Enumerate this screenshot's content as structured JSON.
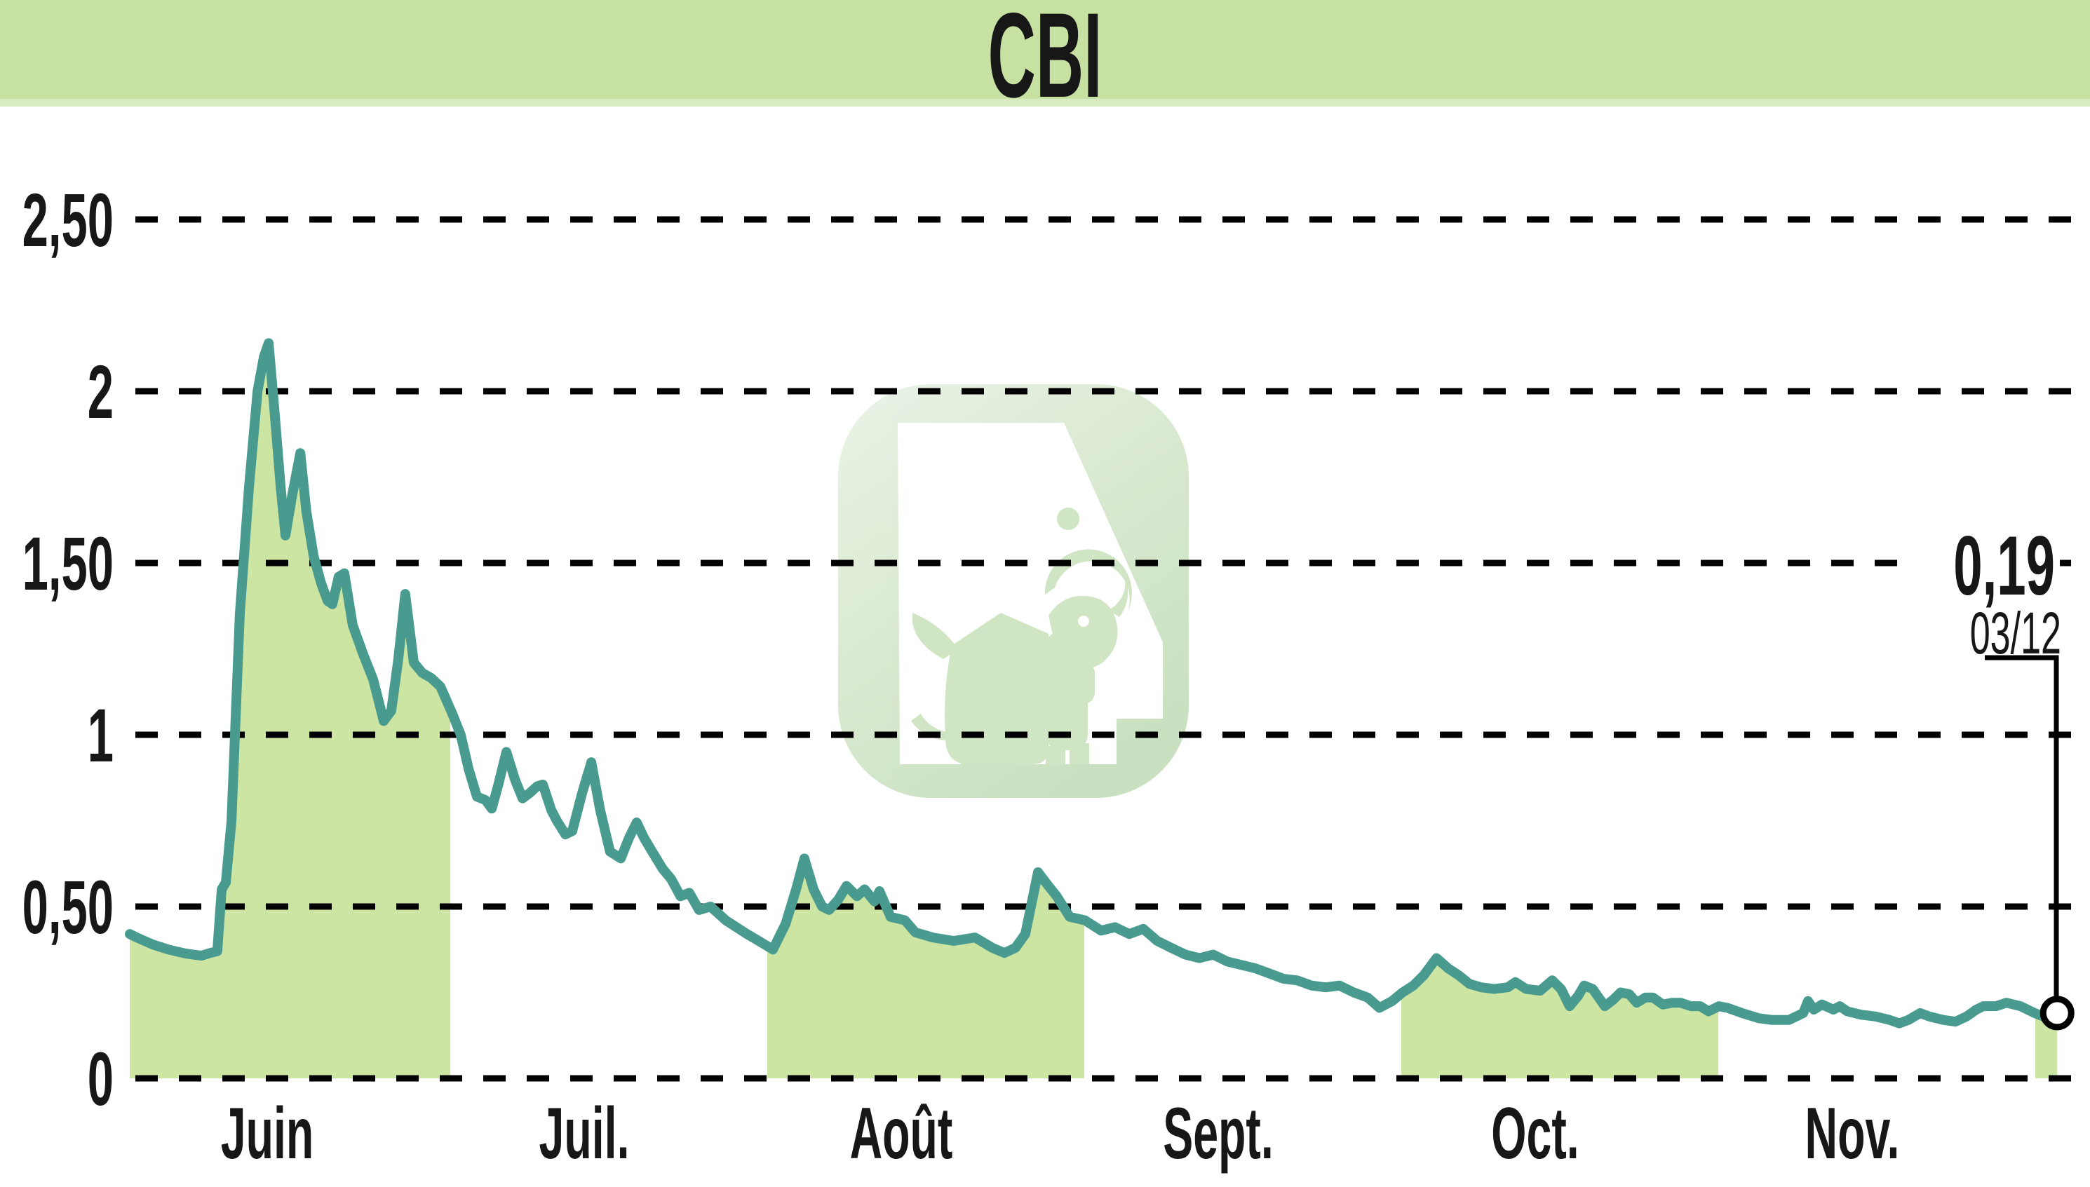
{
  "title": "CBI",
  "colors": {
    "header_bg": "#c6e1a2",
    "header_edge": "#d9ebc1",
    "line": "#4a9b8f",
    "area_fill": "#cde5a2",
    "grid": "#000000",
    "text": "#171717",
    "background": "#ffffff",
    "watermark_light": "#e9f3e5",
    "watermark_dark": "#c8e0bf",
    "watermark_shape": "#cfe4c1"
  },
  "y_axis": {
    "ticks": [
      "2,50",
      "2",
      "1,50",
      "1",
      "0,50",
      "0"
    ],
    "values": [
      2.5,
      2,
      1.5,
      1,
      0.5,
      0
    ]
  },
  "x_axis": {
    "months": [
      "Juin",
      "Juil.",
      "Août",
      "Sept.",
      "Oct.",
      "Nov."
    ]
  },
  "last_quote": {
    "price": "0,19",
    "date": "03/12",
    "value": 0.19
  },
  "watermark": "abc-bourse-logo",
  "chart_data": {
    "type": "area",
    "title": "CBI",
    "ylabel": "",
    "xlabel": "",
    "ylim": [
      0,
      2.5
    ],
    "grid": "dashed-horizontal",
    "legend": "none",
    "x_unit": "months since 01/06 (0 = June 1st)",
    "shaded_month_indices": [
      0,
      2,
      4,
      6
    ],
    "series_name": "CBI share price (EUR)",
    "points": [
      [
        -0.011,
        0.42
      ],
      [
        0.011,
        0.41
      ],
      [
        0.06,
        0.39
      ],
      [
        0.111,
        0.375
      ],
      [
        0.166,
        0.363
      ],
      [
        0.215,
        0.357
      ],
      [
        0.243,
        0.365
      ],
      [
        0.265,
        0.37
      ],
      [
        0.279,
        0.55
      ],
      [
        0.292,
        0.57
      ],
      [
        0.31,
        0.75
      ],
      [
        0.336,
        1.35
      ],
      [
        0.365,
        1.72
      ],
      [
        0.392,
        2.0
      ],
      [
        0.412,
        2.1
      ],
      [
        0.427,
        2.14
      ],
      [
        0.445,
        1.95
      ],
      [
        0.465,
        1.72
      ],
      [
        0.48,
        1.58
      ],
      [
        0.502,
        1.7
      ],
      [
        0.527,
        1.82
      ],
      [
        0.546,
        1.65
      ],
      [
        0.569,
        1.52
      ],
      [
        0.593,
        1.44
      ],
      [
        0.613,
        1.39
      ],
      [
        0.628,
        1.38
      ],
      [
        0.648,
        1.46
      ],
      [
        0.666,
        1.47
      ],
      [
        0.692,
        1.32
      ],
      [
        0.723,
        1.24
      ],
      [
        0.757,
        1.16
      ],
      [
        0.79,
        1.04
      ],
      [
        0.814,
        1.07
      ],
      [
        0.836,
        1.22
      ],
      [
        0.858,
        1.41
      ],
      [
        0.885,
        1.21
      ],
      [
        0.912,
        1.18
      ],
      [
        0.94,
        1.165
      ],
      [
        0.969,
        1.14
      ],
      [
        1.007,
        1.06
      ],
      [
        1.033,
        1.0
      ],
      [
        1.058,
        0.9
      ],
      [
        1.084,
        0.82
      ],
      [
        1.111,
        0.81
      ],
      [
        1.131,
        0.785
      ],
      [
        1.153,
        0.86
      ],
      [
        1.177,
        0.95
      ],
      [
        1.204,
        0.87
      ],
      [
        1.228,
        0.815
      ],
      [
        1.25,
        0.83
      ],
      [
        1.274,
        0.85
      ],
      [
        1.292,
        0.855
      ],
      [
        1.319,
        0.78
      ],
      [
        1.336,
        0.75
      ],
      [
        1.363,
        0.71
      ],
      [
        1.385,
        0.72
      ],
      [
        1.416,
        0.83
      ],
      [
        1.445,
        0.92
      ],
      [
        1.473,
        0.78
      ],
      [
        1.504,
        0.66
      ],
      [
        1.538,
        0.64
      ],
      [
        1.564,
        0.7
      ],
      [
        1.588,
        0.745
      ],
      [
        1.611,
        0.7
      ],
      [
        1.637,
        0.66
      ],
      [
        1.67,
        0.61
      ],
      [
        1.697,
        0.58
      ],
      [
        1.726,
        0.53
      ],
      [
        1.754,
        0.54
      ],
      [
        1.785,
        0.49
      ],
      [
        1.821,
        0.5
      ],
      [
        1.869,
        0.46
      ],
      [
        1.936,
        0.42
      ],
      [
        1.973,
        0.4
      ],
      [
        2.018,
        0.375
      ],
      [
        2.058,
        0.45
      ],
      [
        2.091,
        0.55
      ],
      [
        2.117,
        0.64
      ],
      [
        2.146,
        0.55
      ],
      [
        2.173,
        0.5
      ],
      [
        2.195,
        0.49
      ],
      [
        2.224,
        0.52
      ],
      [
        2.25,
        0.56
      ],
      [
        2.283,
        0.53
      ],
      [
        2.307,
        0.55
      ],
      [
        2.338,
        0.515
      ],
      [
        2.354,
        0.545
      ],
      [
        2.389,
        0.47
      ],
      [
        2.434,
        0.46
      ],
      [
        2.467,
        0.425
      ],
      [
        2.522,
        0.41
      ],
      [
        2.588,
        0.4
      ],
      [
        2.655,
        0.41
      ],
      [
        2.71,
        0.38
      ],
      [
        2.748,
        0.365
      ],
      [
        2.783,
        0.38
      ],
      [
        2.814,
        0.42
      ],
      [
        2.854,
        0.6
      ],
      [
        2.887,
        0.56
      ],
      [
        2.913,
        0.53
      ],
      [
        2.954,
        0.47
      ],
      [
        3.002,
        0.46
      ],
      [
        3.053,
        0.43
      ],
      [
        3.097,
        0.44
      ],
      [
        3.142,
        0.42
      ],
      [
        3.186,
        0.435
      ],
      [
        3.23,
        0.4
      ],
      [
        3.274,
        0.38
      ],
      [
        3.319,
        0.36
      ],
      [
        3.363,
        0.35
      ],
      [
        3.407,
        0.36
      ],
      [
        3.451,
        0.34
      ],
      [
        3.496,
        0.33
      ],
      [
        3.54,
        0.32
      ],
      [
        3.584,
        0.305
      ],
      [
        3.628,
        0.29
      ],
      [
        3.672,
        0.285
      ],
      [
        3.717,
        0.27
      ],
      [
        3.761,
        0.265
      ],
      [
        3.805,
        0.27
      ],
      [
        3.85,
        0.25
      ],
      [
        3.894,
        0.235
      ],
      [
        3.931,
        0.205
      ],
      [
        3.971,
        0.225
      ],
      [
        4.004,
        0.25
      ],
      [
        4.038,
        0.27
      ],
      [
        4.071,
        0.3
      ],
      [
        4.111,
        0.35
      ],
      [
        4.148,
        0.32
      ],
      [
        4.181,
        0.3
      ],
      [
        4.215,
        0.275
      ],
      [
        4.252,
        0.265
      ],
      [
        4.292,
        0.26
      ],
      [
        4.336,
        0.265
      ],
      [
        4.36,
        0.28
      ],
      [
        4.394,
        0.26
      ],
      [
        4.438,
        0.255
      ],
      [
        4.476,
        0.285
      ],
      [
        4.504,
        0.26
      ],
      [
        4.531,
        0.21
      ],
      [
        4.558,
        0.24
      ],
      [
        4.577,
        0.27
      ],
      [
        4.604,
        0.26
      ],
      [
        4.642,
        0.21
      ],
      [
        4.67,
        0.23
      ],
      [
        4.692,
        0.25
      ],
      [
        4.719,
        0.245
      ],
      [
        4.743,
        0.22
      ],
      [
        4.77,
        0.235
      ],
      [
        4.794,
        0.235
      ],
      [
        4.825,
        0.215
      ],
      [
        4.854,
        0.22
      ],
      [
        4.881,
        0.22
      ],
      [
        4.914,
        0.21
      ],
      [
        4.943,
        0.21
      ],
      [
        4.969,
        0.195
      ],
      [
        5.002,
        0.21
      ],
      [
        5.029,
        0.205
      ],
      [
        5.075,
        0.19
      ],
      [
        5.128,
        0.175
      ],
      [
        5.168,
        0.17
      ],
      [
        5.223,
        0.17
      ],
      [
        5.268,
        0.19
      ],
      [
        5.283,
        0.225
      ],
      [
        5.301,
        0.2
      ],
      [
        5.327,
        0.215
      ],
      [
        5.363,
        0.2
      ],
      [
        5.383,
        0.21
      ],
      [
        5.407,
        0.195
      ],
      [
        5.451,
        0.185
      ],
      [
        5.496,
        0.18
      ],
      [
        5.54,
        0.17
      ],
      [
        5.571,
        0.16
      ],
      [
        5.6,
        0.17
      ],
      [
        5.637,
        0.19
      ],
      [
        5.666,
        0.18
      ],
      [
        5.71,
        0.17
      ],
      [
        5.748,
        0.165
      ],
      [
        5.783,
        0.18
      ],
      [
        5.814,
        0.2
      ],
      [
        5.836,
        0.21
      ],
      [
        5.876,
        0.21
      ],
      [
        5.909,
        0.22
      ],
      [
        5.953,
        0.21
      ],
      [
        5.998,
        0.19
      ],
      [
        6.025,
        0.18
      ],
      [
        6.047,
        0.185
      ],
      [
        6.069,
        0.19
      ]
    ]
  }
}
